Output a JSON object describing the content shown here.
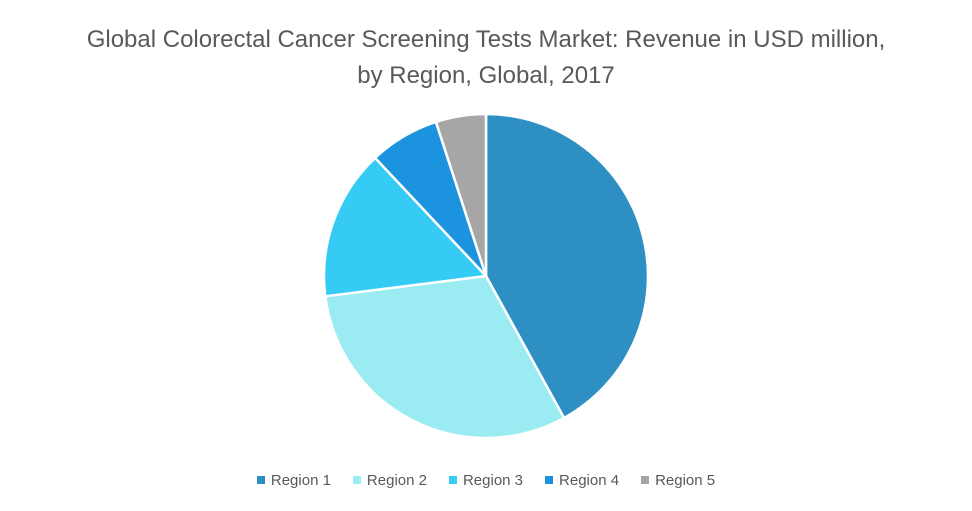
{
  "chart_data": {
    "type": "pie",
    "title": "Global Colorectal Cancer Screening Tests Market: Revenue in USD million, by Region, Global, 2017",
    "categories": [
      "Region 1",
      "Region 2",
      "Region 3",
      "Region 4",
      "Region 5"
    ],
    "values": [
      42,
      31,
      15,
      7,
      5
    ],
    "colors": [
      "#2E8FC3",
      "#9BEBF2",
      "#35CBF5",
      "#1B93DF",
      "#A6A6A6"
    ],
    "legend_position": "bottom",
    "start_angle_deg": 0,
    "direction": "clockwise"
  }
}
